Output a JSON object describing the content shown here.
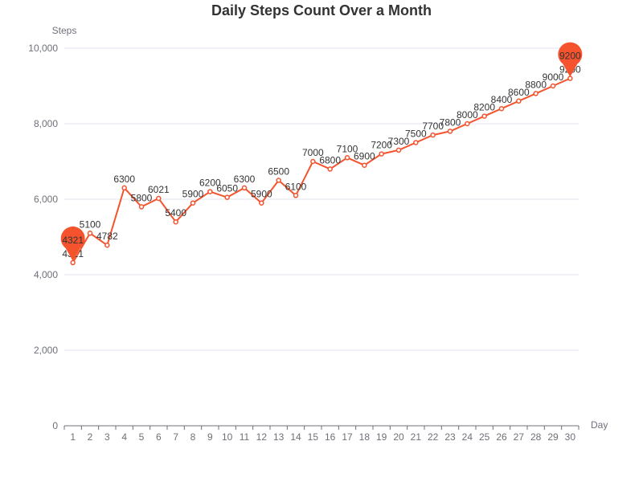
{
  "chart_data": {
    "type": "line",
    "title": "Daily Steps Count Over a Month",
    "xlabel": "Day",
    "ylabel": "Steps",
    "categories": [
      "1",
      "2",
      "3",
      "4",
      "5",
      "6",
      "7",
      "8",
      "9",
      "10",
      "11",
      "12",
      "13",
      "14",
      "15",
      "16",
      "17",
      "18",
      "19",
      "20",
      "21",
      "22",
      "23",
      "24",
      "25",
      "26",
      "27",
      "28",
      "29",
      "30"
    ],
    "series": [
      {
        "values": [
          4321,
          5100,
          4782,
          6300,
          5800,
          6021,
          5400,
          5900,
          6200,
          6050,
          6300,
          5900,
          6500,
          6100,
          7000,
          6800,
          7100,
          6900,
          7200,
          7300,
          7500,
          7700,
          7800,
          8000,
          8200,
          8400,
          8600,
          8800,
          9000,
          9200
        ]
      }
    ],
    "ylim": [
      0,
      10000
    ],
    "yticks": [
      0,
      2000,
      4000,
      6000,
      8000,
      10000
    ],
    "ytick_labels": [
      "0",
      "2,000",
      "4,000",
      "6,000",
      "8,000",
      "10,000"
    ],
    "grid": true,
    "markers": [
      {
        "type": "min",
        "label": "4321",
        "index": 0
      },
      {
        "type": "max",
        "label": "9200",
        "index": 29
      }
    ],
    "line_color": "#f4532d",
    "grid_color": "#e0e6f1",
    "axis_color": "#6e7079"
  }
}
